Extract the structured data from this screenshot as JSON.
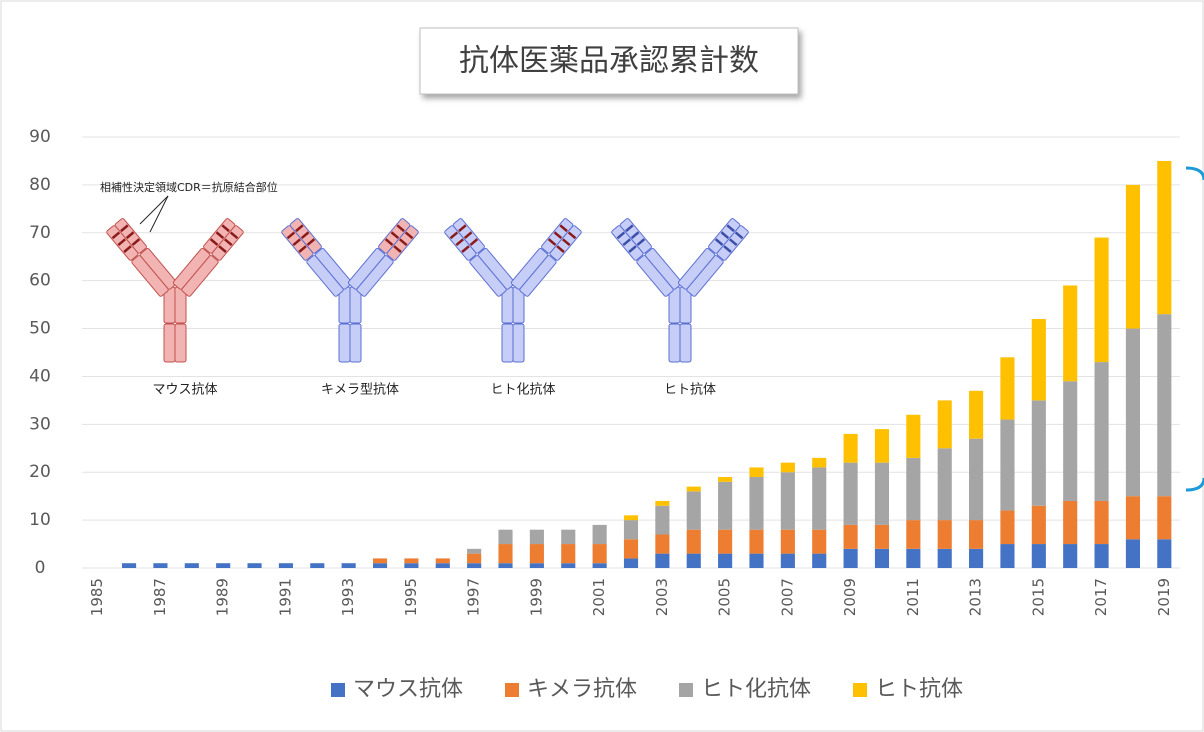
{
  "chart_data": {
    "type": "bar",
    "stacked": true,
    "title": "抗体医薬品承認累計数",
    "categories": [
      "1985",
      null,
      "1987",
      null,
      "1989",
      null,
      "1991",
      null,
      "1993",
      null,
      "1995",
      null,
      "1997",
      null,
      "1999",
      null,
      "2001",
      null,
      "2003",
      null,
      "2005",
      null,
      "2007",
      null,
      "2009",
      null,
      "2011",
      null,
      "2013",
      null,
      "2015",
      null,
      "2017",
      null,
      "2019"
    ],
    "series": [
      {
        "name": "マウス抗体",
        "color": "#4472c4",
        "values": [
          0,
          1,
          1,
          1,
          1,
          1,
          1,
          1,
          1,
          1,
          1,
          1,
          1,
          1,
          1,
          1,
          1,
          2,
          3,
          3,
          3,
          3,
          3,
          3,
          4,
          4,
          4,
          4,
          4,
          5,
          5,
          5,
          5,
          6,
          6
        ]
      },
      {
        "name": "キメラ抗体",
        "color": "#ed7d31",
        "values": [
          0,
          0,
          0,
          0,
          0,
          0,
          0,
          0,
          0,
          1,
          1,
          1,
          2,
          4,
          4,
          4,
          4,
          4,
          4,
          5,
          5,
          5,
          5,
          5,
          5,
          5,
          6,
          6,
          6,
          7,
          8,
          9,
          9,
          9,
          9
        ]
      },
      {
        "name": "ヒト化抗体",
        "color": "#a5a5a5",
        "values": [
          0,
          0,
          0,
          0,
          0,
          0,
          0,
          0,
          0,
          0,
          0,
          0,
          1,
          3,
          3,
          3,
          4,
          4,
          6,
          8,
          10,
          11,
          12,
          13,
          13,
          13,
          13,
          15,
          17,
          19,
          22,
          25,
          29,
          35,
          38
        ]
      },
      {
        "name": "ヒト抗体",
        "color": "#ffc000",
        "values": [
          0,
          0,
          0,
          0,
          0,
          0,
          0,
          0,
          0,
          0,
          0,
          0,
          0,
          0,
          0,
          0,
          0,
          1,
          1,
          1,
          1,
          2,
          2,
          2,
          6,
          7,
          9,
          10,
          10,
          13,
          17,
          20,
          26,
          30,
          32
        ]
      }
    ],
    "ylim": [
      0,
      90
    ],
    "yticks": [
      0,
      10,
      20,
      30,
      40,
      50,
      60,
      70,
      80,
      90
    ],
    "grid": true,
    "legend": "bottom",
    "annotations": {
      "cdr": "相補性決定領域CDR＝抗原結合部位",
      "labels": [
        "マウス抗体",
        "キメラ型抗体",
        "ヒト化抗体",
        "ヒト抗体"
      ]
    }
  }
}
